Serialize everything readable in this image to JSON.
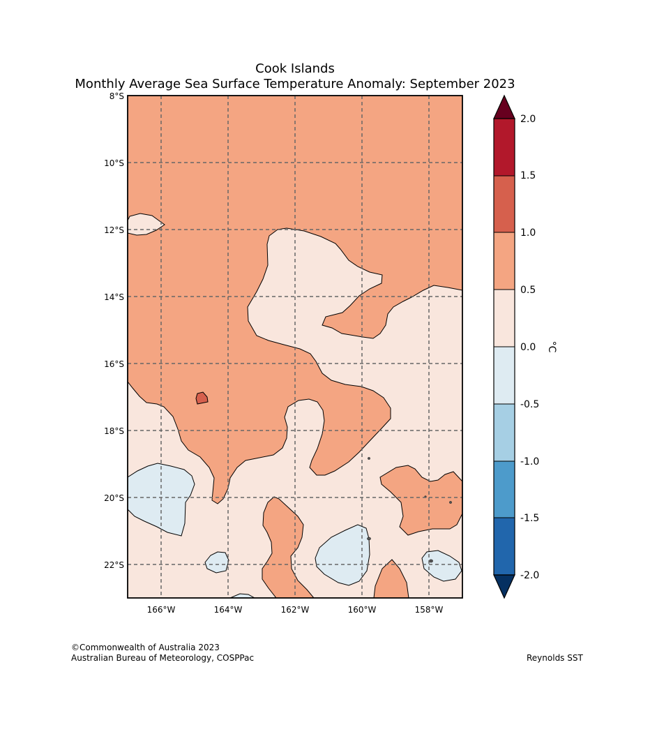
{
  "header": {
    "title_line1": "Cook Islands",
    "title_line2": "Monthly Average Sea Surface Temperature Anomaly: September 2023"
  },
  "map": {
    "lat_labels": [
      "8°S",
      "10°S",
      "12°S",
      "14°S",
      "16°S",
      "18°S",
      "20°S",
      "22°S"
    ],
    "lon_labels": [
      "166°W",
      "164°W",
      "162°W",
      "160°W",
      "158°W"
    ],
    "lon_range": [
      "167°W",
      "157°W"
    ],
    "lat_range": [
      "8°S",
      "23°S"
    ]
  },
  "colorbar": {
    "unit": "°C",
    "ticks": [
      "2.0",
      "1.5",
      "1.0",
      "0.5",
      "0.0",
      "-0.5",
      "-1.0",
      "-1.5",
      "-2.0"
    ],
    "colors": {
      "over": "#67001f",
      "b_1_5_2_0": "#b2182b",
      "b_1_0_1_5": "#d6604d",
      "b_0_5_1_0": "#f4a582",
      "b_0_0_0_5": "#f9e6dd",
      "b_m0_5_0_0": "#deebf2",
      "b_m1_0_m0_5": "#a6cfe4",
      "b_m1_5_m1_0": "#4d9bcb",
      "b_m2_0_m1_5": "#2166ac",
      "under": "#053061"
    }
  },
  "footer": {
    "copyright": "©Commonwealth of Australia 2023",
    "agency": "Australian Bureau of Meteorology, COSPPac",
    "source": "Reynolds SST"
  }
}
